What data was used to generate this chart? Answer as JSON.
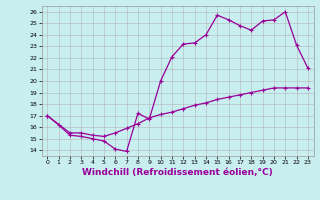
{
  "xlabel": "Windchill (Refroidissement éolien,°C)",
  "xlim": [
    -0.5,
    23.5
  ],
  "ylim": [
    13.5,
    26.5
  ],
  "xticks": [
    0,
    1,
    2,
    3,
    4,
    5,
    6,
    7,
    8,
    9,
    10,
    11,
    12,
    13,
    14,
    15,
    16,
    17,
    18,
    19,
    20,
    21,
    22,
    23
  ],
  "yticks": [
    14,
    15,
    16,
    17,
    18,
    19,
    20,
    21,
    22,
    23,
    24,
    25,
    26
  ],
  "bg_color": "#c8eef0",
  "grid_color": "#b0b0b0",
  "line_color": "#990099",
  "line1_x": [
    0,
    1,
    2,
    3,
    4,
    5,
    6,
    7,
    8,
    9,
    10,
    11,
    12,
    13,
    14,
    15,
    16,
    17,
    18,
    19,
    20,
    21,
    22,
    23
  ],
  "line1_y": [
    17.0,
    16.2,
    15.3,
    15.2,
    15.0,
    14.8,
    14.1,
    13.9,
    17.2,
    16.7,
    20.0,
    22.1,
    23.2,
    23.3,
    24.0,
    25.7,
    25.3,
    24.8,
    24.4,
    25.2,
    25.3,
    26.0,
    23.1,
    21.1
  ],
  "line2_x": [
    0,
    2,
    3,
    4,
    5,
    6,
    7,
    8,
    9,
    10,
    11,
    12,
    13,
    14,
    15,
    16,
    17,
    18,
    19,
    20,
    21,
    22,
    23
  ],
  "line2_y": [
    17.0,
    15.5,
    15.5,
    15.3,
    15.2,
    15.5,
    15.9,
    16.3,
    16.8,
    17.1,
    17.3,
    17.6,
    17.9,
    18.1,
    18.4,
    18.6,
    18.8,
    19.0,
    19.2,
    19.4,
    19.4,
    19.4,
    19.4
  ],
  "marker": "+",
  "markersize": 3,
  "linewidth": 0.9,
  "tick_fontsize": 4.5,
  "xlabel_fontsize": 6.5
}
